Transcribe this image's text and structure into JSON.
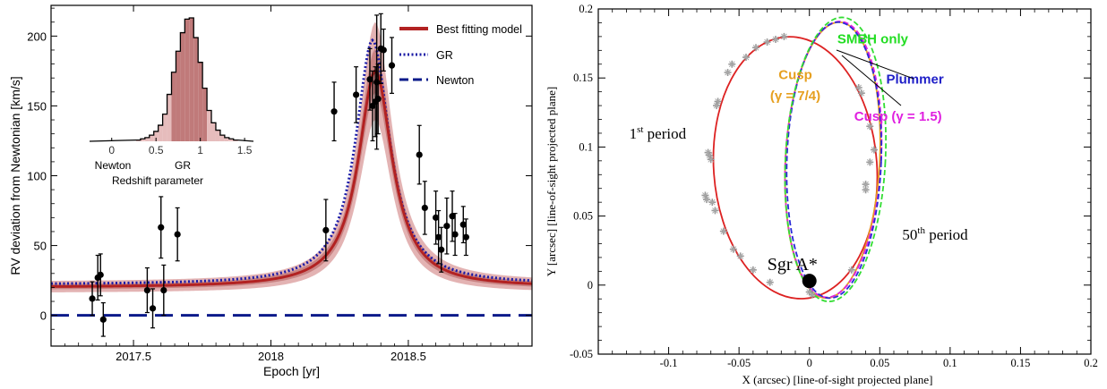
{
  "chart_data": [
    {
      "type": "line",
      "xlabel": "Epoch [yr]",
      "ylabel": "RV deviation from Newtonian [km/s]",
      "xlim": [
        2017.2,
        2018.95
      ],
      "ylim": [
        -22,
        222
      ],
      "xticks": [
        2017.5,
        2018,
        2018.5
      ],
      "xtick_labels": [
        "2017.5",
        "2018",
        "2018.5"
      ],
      "yticks": [
        0,
        50,
        100,
        150,
        200
      ],
      "ytick_labels": [
        "0",
        "50",
        "100",
        "150",
        "200"
      ],
      "legend_position": "top-right",
      "series": [
        {
          "name": "Best fitting model",
          "color": "#b22222",
          "style": "solid",
          "peak_epoch": 2018.38,
          "peak_value": 175,
          "baseline": 20
        },
        {
          "name": "GR",
          "color": "#1a1aa6",
          "style": "dotted",
          "peak_epoch": 2018.37,
          "peak_value": 197,
          "baseline": 22
        },
        {
          "name": "Newton",
          "color": "#0a1a8a",
          "style": "dashed",
          "constant": 0
        }
      ],
      "points": [
        {
          "x": 2017.35,
          "y": 12,
          "err": 12
        },
        {
          "x": 2017.37,
          "y": 27,
          "err": 16
        },
        {
          "x": 2017.38,
          "y": 29,
          "err": 15
        },
        {
          "x": 2017.39,
          "y": -3,
          "err": 12
        },
        {
          "x": 2017.55,
          "y": 18,
          "err": 16
        },
        {
          "x": 2017.57,
          "y": 5,
          "err": 14
        },
        {
          "x": 2017.6,
          "y": 63,
          "err": 22
        },
        {
          "x": 2017.61,
          "y": 18,
          "err": 18
        },
        {
          "x": 2017.66,
          "y": 58,
          "err": 19
        },
        {
          "x": 2018.2,
          "y": 61,
          "err": 22
        },
        {
          "x": 2018.23,
          "y": 146,
          "err": 21
        },
        {
          "x": 2018.31,
          "y": 158,
          "err": 20
        },
        {
          "x": 2018.36,
          "y": 169,
          "err": 22
        },
        {
          "x": 2018.37,
          "y": 150,
          "err": 25
        },
        {
          "x": 2018.38,
          "y": 153,
          "err": 25
        },
        {
          "x": 2018.385,
          "y": 167,
          "err": 48
        },
        {
          "x": 2018.39,
          "y": 155,
          "err": 25
        },
        {
          "x": 2018.4,
          "y": 191,
          "err": 25
        },
        {
          "x": 2018.41,
          "y": 190,
          "err": 15
        },
        {
          "x": 2018.44,
          "y": 179,
          "err": 20
        },
        {
          "x": 2018.54,
          "y": 115,
          "err": 21
        },
        {
          "x": 2018.56,
          "y": 77,
          "err": 19
        },
        {
          "x": 2018.6,
          "y": 70,
          "err": 19
        },
        {
          "x": 2018.61,
          "y": 56,
          "err": 19
        },
        {
          "x": 2018.62,
          "y": 47,
          "err": 16
        },
        {
          "x": 2018.64,
          "y": 64,
          "err": 20
        },
        {
          "x": 2018.66,
          "y": 71,
          "err": 18
        },
        {
          "x": 2018.67,
          "y": 58,
          "err": 15
        },
        {
          "x": 2018.7,
          "y": 65,
          "err": 13
        },
        {
          "x": 2018.71,
          "y": 56,
          "err": 13
        }
      ],
      "inset": {
        "type": "histogram",
        "xlabel": "Redshift parameter",
        "xlim": [
          -0.25,
          1.6
        ],
        "xticks": [
          0,
          0.5,
          1,
          1.5
        ],
        "xtick_labels": [
          "0",
          "0.5",
          "1",
          "1.5"
        ],
        "named_ticks": [
          {
            "x": 0,
            "label": "Newton"
          },
          {
            "x": 1,
            "label": "GR"
          }
        ],
        "bin_width": 0.05,
        "bins": [
          {
            "x": 0.3,
            "h": 0.01
          },
          {
            "x": 0.35,
            "h": 0.02
          },
          {
            "x": 0.4,
            "h": 0.03
          },
          {
            "x": 0.45,
            "h": 0.05
          },
          {
            "x": 0.5,
            "h": 0.08
          },
          {
            "x": 0.55,
            "h": 0.13
          },
          {
            "x": 0.6,
            "h": 0.22
          },
          {
            "x": 0.65,
            "h": 0.38
          },
          {
            "x": 0.7,
            "h": 0.56
          },
          {
            "x": 0.75,
            "h": 0.73
          },
          {
            "x": 0.8,
            "h": 0.88
          },
          {
            "x": 0.85,
            "h": 0.99
          },
          {
            "x": 0.9,
            "h": 1.0
          },
          {
            "x": 0.95,
            "h": 0.84
          },
          {
            "x": 1.0,
            "h": 0.64
          },
          {
            "x": 1.05,
            "h": 0.43
          },
          {
            "x": 1.1,
            "h": 0.25
          },
          {
            "x": 1.15,
            "h": 0.15
          },
          {
            "x": 1.2,
            "h": 0.09
          },
          {
            "x": 1.25,
            "h": 0.05
          },
          {
            "x": 1.3,
            "h": 0.03
          },
          {
            "x": 1.35,
            "h": 0.02
          },
          {
            "x": 1.4,
            "h": 0.01
          }
        ]
      }
    },
    {
      "type": "scatter",
      "xlabel": "X (arcsec) [line-of-sight projected plane]",
      "ylabel": "Y [arcsec] [line-of-sight projected plane]",
      "xlim": [
        -0.15,
        0.2
      ],
      "ylim": [
        -0.05,
        0.2
      ],
      "xticks": [
        -0.1,
        -0.05,
        0,
        0.05,
        0.1,
        0.15,
        0.2
      ],
      "xtick_labels": [
        "-0.1",
        "-0.05",
        "0",
        "0.05",
        "0.1",
        "0.15",
        "0.2"
      ],
      "yticks": [
        -0.05,
        0,
        0.05,
        0.1,
        0.15,
        0.2
      ],
      "ytick_labels": [
        "-0.05",
        "0",
        "0.05",
        "0.1",
        "0.15",
        "0.2"
      ],
      "curves": [
        {
          "name": "1st period",
          "color": "#dd2222",
          "style": "solid",
          "cx": -0.01,
          "cy": 0.085,
          "rx": 0.058,
          "ry": 0.095,
          "rot": -4
        },
        {
          "name": "Cusp (γ = 7/4)",
          "color": "#e6a020",
          "style": "solid",
          "cx": 0.0165,
          "cy": 0.0905,
          "rx": 0.0335,
          "ry": 0.1,
          "rot": 3
        },
        {
          "name": "Cusp (γ = 1.5)",
          "color": "#e020e0",
          "style": "dashed",
          "cx": 0.017,
          "cy": 0.091,
          "rx": 0.034,
          "ry": 0.1,
          "rot": 3
        },
        {
          "name": "Plummer",
          "color": "#2a2ad8",
          "style": "dashed",
          "cx": 0.0175,
          "cy": 0.0905,
          "rx": 0.0335,
          "ry": 0.1,
          "rot": 2
        },
        {
          "name": "SMBH only",
          "color": "#33dd33",
          "style": "dashed",
          "cx": 0.0185,
          "cy": 0.091,
          "rx": 0.0355,
          "ry": 0.103,
          "rot": 3
        }
      ],
      "points": [
        {
          "x": -0.045,
          "y": 0.165
        },
        {
          "x": -0.038,
          "y": 0.172
        },
        {
          "x": -0.03,
          "y": 0.176
        },
        {
          "x": -0.024,
          "y": 0.178
        },
        {
          "x": -0.018,
          "y": 0.18
        },
        {
          "x": -0.055,
          "y": 0.16
        },
        {
          "x": -0.058,
          "y": 0.154
        },
        {
          "x": -0.065,
          "y": 0.133
        },
        {
          "x": -0.066,
          "y": 0.13
        },
        {
          "x": -0.072,
          "y": 0.096
        },
        {
          "x": -0.071,
          "y": 0.094
        },
        {
          "x": -0.07,
          "y": 0.091
        },
        {
          "x": -0.074,
          "y": 0.065
        },
        {
          "x": -0.073,
          "y": 0.062
        },
        {
          "x": -0.069,
          "y": 0.06
        },
        {
          "x": -0.067,
          "y": 0.054
        },
        {
          "x": -0.061,
          "y": 0.039
        },
        {
          "x": -0.054,
          "y": 0.026
        },
        {
          "x": -0.049,
          "y": 0.021
        },
        {
          "x": -0.04,
          "y": 0.011
        },
        {
          "x": -0.028,
          "y": 0.002
        },
        {
          "x": 0.0,
          "y": -0.005
        },
        {
          "x": 0.002,
          "y": -0.007
        },
        {
          "x": 0.03,
          "y": 0.011
        },
        {
          "x": 0.035,
          "y": 0.143
        },
        {
          "x": 0.037,
          "y": 0.139
        },
        {
          "x": 0.043,
          "y": 0.115
        },
        {
          "x": 0.046,
          "y": 0.098
        },
        {
          "x": 0.043,
          "y": 0.089
        },
        {
          "x": 0.04,
          "y": 0.073
        },
        {
          "x": 0.04,
          "y": 0.069
        }
      ],
      "annotations": [
        {
          "text": "SMBH only",
          "color": "#22dd22",
          "at": [
            0.045,
            0.175
          ]
        },
        {
          "text": "Cusp",
          "color": "#e6a020",
          "at": [
            -0.01,
            0.149
          ]
        },
        {
          "text": "(γ = 7/4)",
          "color": "#e6a020",
          "at": [
            -0.01,
            0.134
          ]
        },
        {
          "text": "Plummer",
          "color": "#2020c8",
          "at": [
            0.075,
            0.146
          ]
        },
        {
          "text": "Cusp (γ = 1.5)",
          "color": "#e020e0",
          "at": [
            0.063,
            0.119
          ]
        },
        {
          "text": "Sgr A*",
          "color": "#000000",
          "at": [
            -0.012,
            0.011
          ]
        }
      ],
      "period_labels": [
        {
          "base": "1",
          "sup": "st",
          "rest": " period",
          "at": [
            -0.128,
            0.106
          ]
        },
        {
          "base": "50",
          "sup": "th",
          "rest": " period",
          "at": [
            0.066,
            0.033
          ]
        }
      ],
      "sgr_a_star": {
        "x": 0,
        "y": 0.003
      }
    }
  ]
}
